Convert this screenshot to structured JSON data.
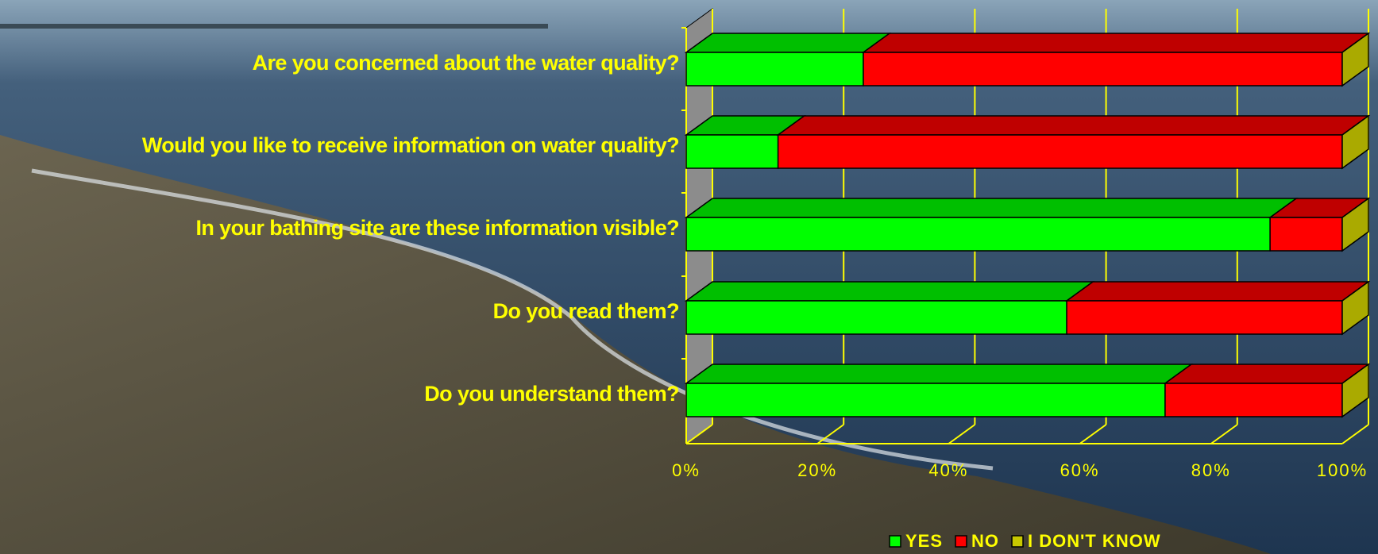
{
  "chart_data": {
    "type": "stacked_bar_3d",
    "categories": [
      "Are you concerned about the water quality?",
      "Would you like to receive information on water quality?",
      "In your bathing site are these information visible?",
      "Do you read  them?",
      "Do you understand them?"
    ],
    "series": [
      {
        "name": "YES",
        "color": "#00ff00",
        "values": [
          27,
          14,
          89,
          58,
          73
        ]
      },
      {
        "name": "NO",
        "color": "#ff0000",
        "values": [
          73,
          86,
          11,
          42,
          27
        ]
      },
      {
        "name": "I DON'T KNOW",
        "color": "#c8c800",
        "values": [
          0,
          0,
          0,
          0,
          0
        ]
      }
    ],
    "xlim": [
      0,
      100
    ],
    "xticks": [
      {
        "value": 0,
        "label": "0%"
      },
      {
        "value": 20,
        "label": "20%"
      },
      {
        "value": 40,
        "label": "40%"
      },
      {
        "value": 60,
        "label": "60%"
      },
      {
        "value": 80,
        "label": "80%"
      },
      {
        "value": 100,
        "label": "100%"
      }
    ],
    "grid": true,
    "legend": "bottom"
  }
}
